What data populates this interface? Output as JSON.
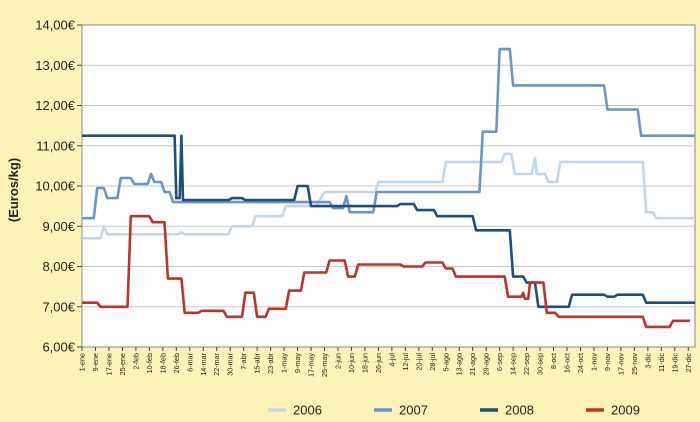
{
  "chart_data": {
    "type": "line",
    "ylabel": "(Euros/kg)",
    "ylim": [
      6.0,
      14.0
    ],
    "ytick_labels": [
      "6,00€",
      "7,00€",
      "8,00€",
      "9,00€",
      "10,00€",
      "11,00€",
      "12,00€",
      "13,00€",
      "14,00€"
    ],
    "ytick_values": [
      6,
      7,
      8,
      9,
      10,
      11,
      12,
      13,
      14
    ],
    "x_domain": [
      1,
      361
    ],
    "xtick_labels": [
      "1-ene",
      "9-ene",
      "17-ene",
      "25-ene",
      "2-feb",
      "10-feb",
      "18-feb",
      "26-feb",
      "6-mar",
      "14-mar",
      "22-mar",
      "30-mar",
      "7-abr",
      "15-abr",
      "23-abr",
      "1-may",
      "9-may",
      "17-may",
      "25-may",
      "2-jun",
      "10-jun",
      "18-jun",
      "26-jun",
      "4-jul",
      "12-jul",
      "20-jul",
      "28-jul",
      "5-ago",
      "13-ago",
      "21-ago",
      "29-ago",
      "6-sep",
      "14-sep",
      "22-sep",
      "30-sep",
      "8-oct",
      "16-oct",
      "24-oct",
      "1-nov",
      "9-nov",
      "17-nov",
      "25-nov",
      "3-dic",
      "11-dic",
      "19-dic",
      "27-dic"
    ],
    "grid": true,
    "legend_position": "bottom",
    "series": [
      {
        "name": "2006",
        "color": "#c5d6ea",
        "points": [
          [
            1,
            8.7
          ],
          [
            12,
            8.7
          ],
          [
            14,
            9.0
          ],
          [
            16,
            8.8
          ],
          [
            58,
            8.8
          ],
          [
            60,
            8.85
          ],
          [
            62,
            8.8
          ],
          [
            88,
            8.8
          ],
          [
            90,
            9.0
          ],
          [
            102,
            9.0
          ],
          [
            104,
            9.25
          ],
          [
            120,
            9.25
          ],
          [
            122,
            9.5
          ],
          [
            140,
            9.5
          ],
          [
            145,
            9.85
          ],
          [
            175,
            9.85
          ],
          [
            177,
            10.1
          ],
          [
            215,
            10.1
          ],
          [
            217,
            10.6
          ],
          [
            250,
            10.6
          ],
          [
            252,
            10.8
          ],
          [
            256,
            10.8
          ],
          [
            258,
            10.3
          ],
          [
            268,
            10.3
          ],
          [
            270,
            10.7
          ],
          [
            271,
            10.3
          ],
          [
            276,
            10.3
          ],
          [
            278,
            10.1
          ],
          [
            283,
            10.1
          ],
          [
            285,
            10.6
          ],
          [
            334,
            10.6
          ],
          [
            336,
            9.35
          ],
          [
            340,
            9.35
          ],
          [
            342,
            9.2
          ],
          [
            365,
            9.2
          ]
        ]
      },
      {
        "name": "2007",
        "color": "#6b95c4",
        "points": [
          [
            1,
            9.2
          ],
          [
            8,
            9.2
          ],
          [
            10,
            9.95
          ],
          [
            14,
            9.95
          ],
          [
            16,
            9.7
          ],
          [
            22,
            9.7
          ],
          [
            24,
            10.2
          ],
          [
            30,
            10.2
          ],
          [
            32,
            10.05
          ],
          [
            40,
            10.05
          ],
          [
            42,
            10.3
          ],
          [
            44,
            10.1
          ],
          [
            48,
            10.1
          ],
          [
            50,
            9.85
          ],
          [
            53,
            9.85
          ],
          [
            55,
            9.6
          ],
          [
            148,
            9.6
          ],
          [
            150,
            9.45
          ],
          [
            156,
            9.45
          ],
          [
            158,
            9.75
          ],
          [
            160,
            9.35
          ],
          [
            174,
            9.35
          ],
          [
            176,
            9.85
          ],
          [
            237,
            9.85
          ],
          [
            239,
            11.35
          ],
          [
            247,
            11.35
          ],
          [
            249,
            13.4
          ],
          [
            255,
            13.4
          ],
          [
            257,
            12.5
          ],
          [
            311,
            12.5
          ],
          [
            313,
            11.9
          ],
          [
            331,
            11.9
          ],
          [
            333,
            11.25
          ],
          [
            365,
            11.25
          ]
        ]
      },
      {
        "name": "2008",
        "color": "#1f4f7a",
        "points": [
          [
            1,
            11.25
          ],
          [
            56,
            11.25
          ],
          [
            57,
            9.7
          ],
          [
            59,
            9.7
          ],
          [
            60,
            11.25
          ],
          [
            61,
            9.65
          ],
          [
            88,
            9.65
          ],
          [
            90,
            9.7
          ],
          [
            96,
            9.7
          ],
          [
            98,
            9.65
          ],
          [
            127,
            9.65
          ],
          [
            129,
            10.0
          ],
          [
            135,
            10.0
          ],
          [
            137,
            9.5
          ],
          [
            188,
            9.5
          ],
          [
            190,
            9.55
          ],
          [
            198,
            9.55
          ],
          [
            200,
            9.4
          ],
          [
            210,
            9.4
          ],
          [
            212,
            9.25
          ],
          [
            233,
            9.25
          ],
          [
            235,
            8.9
          ],
          [
            255,
            8.9
          ],
          [
            257,
            7.75
          ],
          [
            263,
            7.75
          ],
          [
            265,
            7.6
          ],
          [
            270,
            7.6
          ],
          [
            272,
            7.0
          ],
          [
            290,
            7.0
          ],
          [
            292,
            7.3
          ],
          [
            311,
            7.3
          ],
          [
            313,
            7.25
          ],
          [
            317,
            7.25
          ],
          [
            319,
            7.3
          ],
          [
            334,
            7.3
          ],
          [
            336,
            7.1
          ],
          [
            365,
            7.1
          ]
        ]
      },
      {
        "name": "2009",
        "color": "#c0332b",
        "points": [
          [
            1,
            7.1
          ],
          [
            10,
            7.1
          ],
          [
            12,
            7.0
          ],
          [
            28,
            7.0
          ],
          [
            30,
            9.25
          ],
          [
            41,
            9.25
          ],
          [
            43,
            9.1
          ],
          [
            50,
            9.1
          ],
          [
            52,
            7.7
          ],
          [
            60,
            7.7
          ],
          [
            62,
            6.85
          ],
          [
            70,
            6.85
          ],
          [
            72,
            6.9
          ],
          [
            85,
            6.9
          ],
          [
            87,
            6.75
          ],
          [
            96,
            6.75
          ],
          [
            98,
            7.35
          ],
          [
            103,
            7.35
          ],
          [
            105,
            6.75
          ],
          [
            110,
            6.75
          ],
          [
            112,
            6.95
          ],
          [
            122,
            6.95
          ],
          [
            124,
            7.4
          ],
          [
            131,
            7.4
          ],
          [
            133,
            7.85
          ],
          [
            146,
            7.85
          ],
          [
            148,
            8.15
          ],
          [
            157,
            8.15
          ],
          [
            159,
            7.75
          ],
          [
            163,
            7.75
          ],
          [
            165,
            8.05
          ],
          [
            190,
            8.05
          ],
          [
            192,
            8.0
          ],
          [
            203,
            8.0
          ],
          [
            205,
            8.1
          ],
          [
            215,
            8.1
          ],
          [
            217,
            7.95
          ],
          [
            221,
            7.95
          ],
          [
            223,
            7.75
          ],
          [
            252,
            7.75
          ],
          [
            254,
            7.25
          ],
          [
            262,
            7.25
          ],
          [
            263,
            7.35
          ],
          [
            264,
            7.2
          ],
          [
            266,
            7.2
          ],
          [
            267,
            7.6
          ],
          [
            275,
            7.6
          ],
          [
            277,
            6.85
          ],
          [
            282,
            6.85
          ],
          [
            284,
            6.75
          ],
          [
            334,
            6.75
          ],
          [
            336,
            6.5
          ],
          [
            350,
            6.5
          ],
          [
            352,
            6.65
          ],
          [
            362,
            6.65
          ]
        ]
      }
    ]
  }
}
